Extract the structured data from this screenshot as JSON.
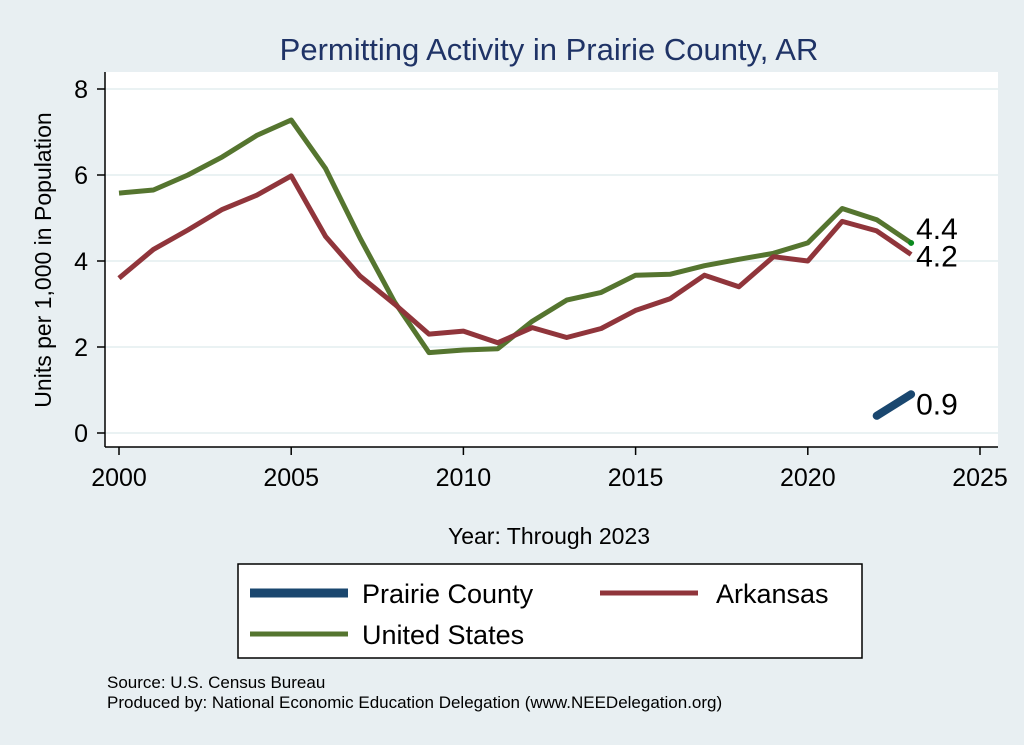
{
  "chart_data": {
    "type": "line",
    "title": "Permitting Activity in Prairie County, AR",
    "xlabel": "Year: Through 2023",
    "ylabel": "Units per 1,000 in Population",
    "xlim": [
      2000,
      2025
    ],
    "ylim": [
      0,
      8
    ],
    "x_ticks": [
      "2000",
      "2005",
      "2010",
      "2015",
      "2020",
      "2025"
    ],
    "y_ticks": [
      "0",
      "2",
      "4",
      "6",
      "8"
    ],
    "grid": true,
    "legend_position": "bottom",
    "title_color": "#1f3366",
    "series": [
      {
        "name": "Prairie County",
        "color": "#1a476f",
        "x": [
          2022,
          2023
        ],
        "values": [
          0.4,
          0.9
        ],
        "end_label": "0.9"
      },
      {
        "name": "Arkansas",
        "color": "#90353b",
        "x": [
          2000,
          2001,
          2002,
          2003,
          2004,
          2005,
          2006,
          2007,
          2008,
          2009,
          2010,
          2011,
          2012,
          2013,
          2014,
          2015,
          2016,
          2017,
          2018,
          2019,
          2020,
          2021,
          2022,
          2023
        ],
        "values": [
          3.6,
          4.27,
          4.72,
          5.2,
          5.53,
          5.98,
          4.57,
          3.65,
          3.0,
          2.3,
          2.37,
          2.1,
          2.45,
          2.22,
          2.43,
          2.85,
          3.12,
          3.67,
          3.4,
          4.1,
          4.0,
          4.92,
          4.7,
          4.15
        ],
        "end_label": "4.2"
      },
      {
        "name": "United States",
        "color": "#55752f",
        "x": [
          2000,
          2001,
          2002,
          2003,
          2004,
          2005,
          2006,
          2007,
          2008,
          2009,
          2010,
          2011,
          2012,
          2013,
          2014,
          2015,
          2016,
          2017,
          2018,
          2019,
          2020,
          2021,
          2022,
          2023
        ],
        "values": [
          5.58,
          5.65,
          6.0,
          6.42,
          6.92,
          7.28,
          6.15,
          4.53,
          3.05,
          1.87,
          1.93,
          1.96,
          2.6,
          3.09,
          3.27,
          3.67,
          3.69,
          3.89,
          4.04,
          4.18,
          4.42,
          5.22,
          4.96,
          4.42
        ],
        "end_label": "4.4"
      }
    ],
    "notes": [
      "Source: U.S. Census Bureau",
      "Produced by: National Economic Education Delegation (www.NEEDelegation.org)"
    ]
  }
}
